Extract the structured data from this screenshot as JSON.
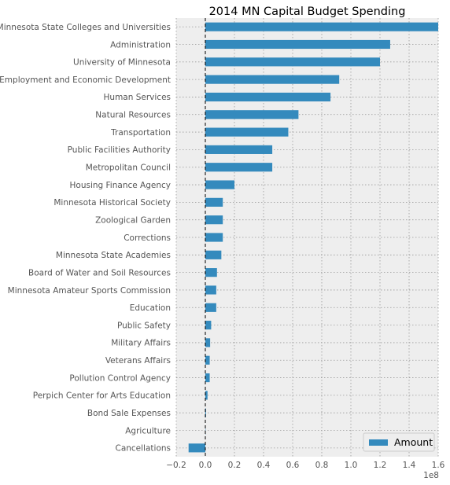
{
  "chart_data": {
    "type": "bar",
    "orientation": "horizontal",
    "title": "2014 MN Capital Budget Spending",
    "xlabel": "",
    "ylabel": "",
    "xlim": [
      -20000000,
      160000000
    ],
    "x_ticks": [
      -20000000,
      0,
      20000000,
      40000000,
      60000000,
      80000000,
      100000000,
      120000000,
      140000000,
      160000000
    ],
    "x_tick_labels": [
      "−0.2",
      "0.0",
      "0.2",
      "0.4",
      "0.6",
      "0.8",
      "1.0",
      "1.2",
      "1.4",
      "1.6"
    ],
    "x_offset_label": "1e8",
    "grid": true,
    "legend_position": "lower right",
    "bar_color": "#348ABD",
    "categories": [
      "Minnesota State Colleges and Universities",
      "Administration",
      "University of Minnesota",
      "Employment and Economic Development",
      "Human Services",
      "Natural Resources",
      "Transportation",
      "Public Facilities Authority",
      "Metropolitan Council",
      "Housing Finance Agency",
      "Minnesota Historical Society",
      "Zoological Garden",
      "Corrections",
      "Minnesota State Academies",
      "Board of Water and Soil Resources",
      "Minnesota Amateur Sports Commission",
      "Education",
      "Public Safety",
      "Military Affairs",
      "Veterans Affairs",
      "Pollution Control Agency",
      "Perpich Center for Arts Education",
      "Bond Sale Expenses",
      "Agriculture",
      "Cancellations"
    ],
    "series": [
      {
        "name": "Amount",
        "values": [
          160000000,
          127000000,
          120000000,
          92000000,
          86000000,
          64000000,
          57000000,
          46000000,
          46000000,
          20000000,
          12000000,
          12000000,
          12000000,
          11000000,
          8000000,
          7500000,
          7500000,
          4000000,
          3300000,
          3000000,
          3000000,
          1500000,
          500000,
          200000,
          -11500000
        ]
      }
    ]
  }
}
